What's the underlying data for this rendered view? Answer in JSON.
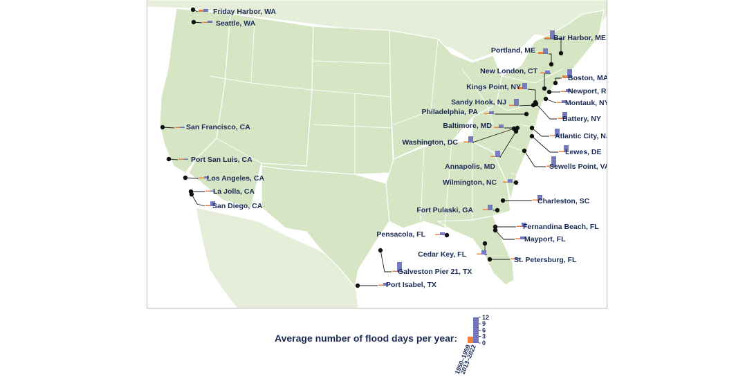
{
  "legend": {
    "title": "Average number of flood days per year:",
    "ticks": [
      "12",
      "9",
      "6",
      "3",
      "0"
    ],
    "periods": [
      "1950–1959",
      "2013–2022"
    ],
    "example_old": 3,
    "example_new": 12
  },
  "colors": {
    "land": "#d6e5c4",
    "land_stroke": "#ffffff",
    "period_1950s": "#f07f3c",
    "period_2013_2022": "#6a6fb7",
    "label_text": "#1b2a55",
    "leader_line": "#1b1b1b"
  },
  "chart_data": {
    "type": "map",
    "units": "flood days per year",
    "series": [
      {
        "name": "1950–1959",
        "color": "#f07f3c"
      },
      {
        "name": "2013–2022",
        "color": "#6a6fb7"
      }
    ],
    "stations": [
      {
        "id": "friday-harbor",
        "name": "Friday Harbor, WA",
        "old": 1.5,
        "new": 2
      },
      {
        "id": "seattle",
        "name": "Seattle, WA",
        "old": 0.5,
        "new": 1.5
      },
      {
        "id": "san-francisco",
        "name": "San Francisco, CA",
        "old": 0.2,
        "new": 0.3
      },
      {
        "id": "port-san-luis",
        "name": "Port San Luis, CA",
        "old": 0.3,
        "new": 0.5
      },
      {
        "id": "los-angeles",
        "name": "Los Angeles, CA",
        "old": 0.2,
        "new": 1.5
      },
      {
        "id": "la-jolla",
        "name": "La Jolla, CA",
        "old": 0.2,
        "new": 0.6
      },
      {
        "id": "san-diego",
        "name": "San Diego, CA",
        "old": 0.3,
        "new": 3.5
      },
      {
        "id": "bar-harbor",
        "name": "Bar Harbor, ME",
        "old": 1,
        "new": 6
      },
      {
        "id": "portland",
        "name": "Portland, ME",
        "old": 1.5,
        "new": 4
      },
      {
        "id": "new-london",
        "name": "New London, CT",
        "old": 0.3,
        "new": 2
      },
      {
        "id": "boston",
        "name": "Boston, MA",
        "old": 2,
        "new": 6.5
      },
      {
        "id": "kings-point",
        "name": "Kings Point, NY",
        "old": 1.5,
        "new": 4.5
      },
      {
        "id": "newport",
        "name": "Newport, RI",
        "old": 0.3,
        "new": 2
      },
      {
        "id": "montauk",
        "name": "Montauk, NY",
        "old": 0.3,
        "new": 2
      },
      {
        "id": "sandy-hook",
        "name": "Sandy Hook, NJ",
        "old": 0.5,
        "new": 5
      },
      {
        "id": "battery",
        "name": "Battery, NY",
        "old": 0.5,
        "new": 5
      },
      {
        "id": "philadelphia",
        "name": "Philadelphia, PA",
        "old": 0.3,
        "new": 2
      },
      {
        "id": "baltimore",
        "name": "Baltimore, MD",
        "old": 0.5,
        "new": 2.5
      },
      {
        "id": "atlantic-city",
        "name": "Atlantic City, NJ",
        "old": 0.5,
        "new": 5.5
      },
      {
        "id": "washington",
        "name": "Washington, DC",
        "old": 0.5,
        "new": 4.5
      },
      {
        "id": "lewes",
        "name": "Lewes, DE",
        "old": 0.3,
        "new": 5
      },
      {
        "id": "annapolis",
        "name": "Annapolis, MD",
        "old": 0.5,
        "new": 4.5
      },
      {
        "id": "sewells-point",
        "name": "Sewells Point, VA",
        "old": 0.5,
        "new": 7.5
      },
      {
        "id": "wilmington",
        "name": "Wilmington, NC",
        "old": 0.2,
        "new": 2.5
      },
      {
        "id": "charleston",
        "name": "Charleston, SC",
        "old": 0.2,
        "new": 4
      },
      {
        "id": "fort-pulaski",
        "name": "Fort Pulaski, GA",
        "old": 0.2,
        "new": 4
      },
      {
        "id": "fernandina-beach",
        "name": "Fernandina Beach, FL",
        "old": 0.2,
        "new": 3
      },
      {
        "id": "mayport",
        "name": "Mayport, FL",
        "old": 0.1,
        "new": 2
      },
      {
        "id": "pensacola",
        "name": "Pensacola, FL",
        "old": 0.1,
        "new": 2
      },
      {
        "id": "cedar-key",
        "name": "Cedar Key, FL",
        "old": 0.5,
        "new": 3
      },
      {
        "id": "st-petersburg",
        "name": "St. Petersburg, FL",
        "old": 0.2,
        "new": 1
      },
      {
        "id": "galveston",
        "name": "Galveston Pier 21, TX",
        "old": 0.2,
        "new": 7
      },
      {
        "id": "port-isabel",
        "name": "Port Isabel, TX",
        "old": 0.2,
        "new": 2
      }
    ]
  }
}
